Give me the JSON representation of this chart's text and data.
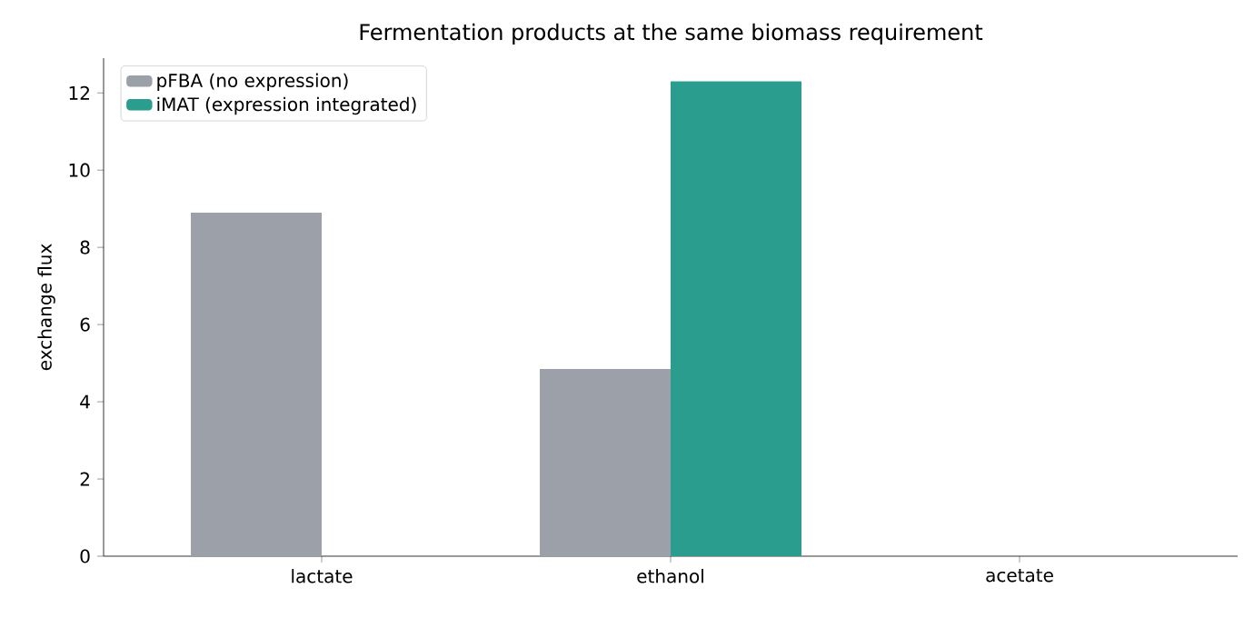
{
  "chart_data": {
    "type": "bar",
    "title": "Fermentation products at the same biomass requirement",
    "ylabel": "exchange flux",
    "categories": [
      "lactate",
      "ethanol",
      "acetate"
    ],
    "series": [
      {
        "name": "pFBA (no expression)",
        "color": "#9ca0a8",
        "values": [
          8.9,
          4.85,
          0
        ]
      },
      {
        "name": "iMAT (expression integrated)",
        "color": "#2a9d8f",
        "values": [
          0,
          12.3,
          0
        ]
      }
    ],
    "ylim": [
      0,
      12.9
    ],
    "yticks": [
      0,
      2,
      4,
      6,
      8,
      10,
      12
    ],
    "legend": "top left",
    "grid": false
  }
}
